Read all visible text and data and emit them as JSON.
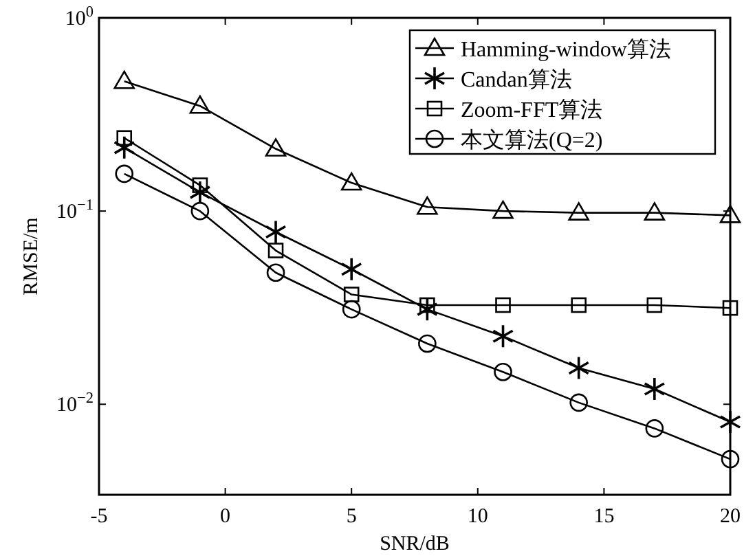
{
  "chart_data": {
    "type": "line",
    "xlabel": "SNR/dB",
    "ylabel": "RMSE/m",
    "log": "y",
    "x": [
      -4,
      -1,
      2,
      5,
      8,
      11,
      14,
      17,
      20
    ],
    "xlim": [
      -5,
      20
    ],
    "xticks": [
      -5,
      0,
      5,
      10,
      15,
      20
    ],
    "ylim": [
      0.0034,
      1
    ],
    "yticks": [
      {
        "value": 1,
        "label": "10$^{0}$"
      },
      {
        "value": 0.1,
        "label": "10$^{−1}$"
      },
      {
        "value": 0.01,
        "label": "10$^{−2}$"
      }
    ],
    "grid": false,
    "legend": "top right",
    "line_style": "solid",
    "series": [
      {
        "name": "Hamming-window算法",
        "color": "#000000",
        "marker": "triangle",
        "values": [
          0.47,
          0.35,
          0.21,
          0.14,
          0.105,
          0.1,
          0.098,
          0.098,
          0.095
        ]
      },
      {
        "name": "Candan算法",
        "color": "#000000",
        "marker": "cross",
        "values": [
          0.213,
          0.125,
          0.078,
          0.05,
          0.031,
          0.0225,
          0.0154,
          0.012,
          0.0081
        ]
      },
      {
        "name": "Zoom-FFT算法",
        "color": "#000000",
        "marker": "square",
        "values": [
          0.239,
          0.136,
          0.0625,
          0.037,
          0.0326,
          0.0326,
          0.0326,
          0.0326,
          0.0315
        ]
      },
      {
        "name": "本文算法(Q=2)",
        "color": "#000000",
        "marker": "circle",
        "values": [
          0.156,
          0.1,
          0.048,
          0.031,
          0.0206,
          0.0147,
          0.0102,
          0.0075,
          0.0052
        ]
      }
    ]
  }
}
